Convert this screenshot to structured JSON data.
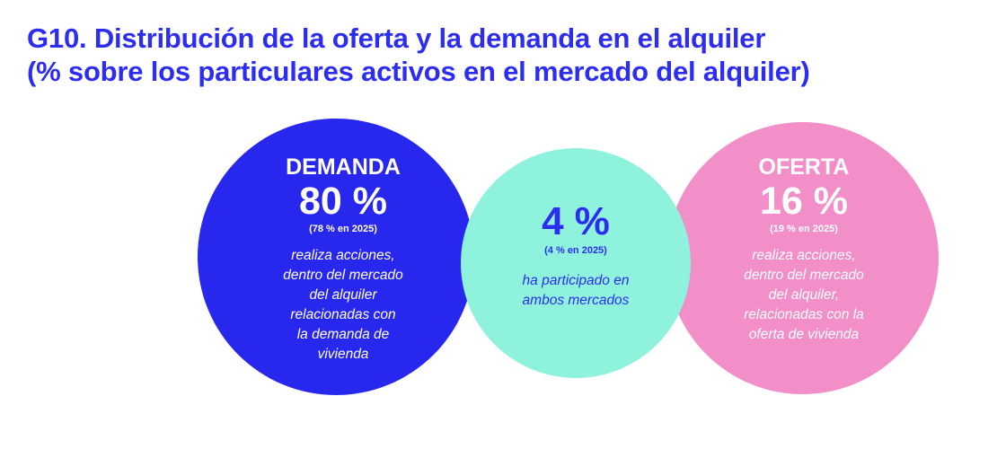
{
  "title": {
    "line1": "G10. Distribución de la oferta y la demanda en el alquiler",
    "line2": "(% sobre los particulares activos en el mercado del alquiler)"
  },
  "colors": {
    "title": "#2d2df2",
    "demand": "#2727ee",
    "both": "#8ef2dc",
    "offer": "#f28ec8"
  },
  "chart_data": {
    "type": "venn",
    "title": "G10. Distribución de la oferta y la demanda en el alquiler (% sobre los particulares activos en el mercado del alquiler)",
    "segments": [
      {
        "label": "DEMANDA",
        "value": 80,
        "value_text": "80 %",
        "previous_text": "(78 % en 2025)",
        "description": [
          "realiza acciones,",
          "dentro del mercado",
          "del alquiler",
          "relacionadas con",
          "la demanda de",
          "vivienda"
        ]
      },
      {
        "label": "",
        "value": 4,
        "value_text": "4 %",
        "previous_text": "(4 % en 2025)",
        "description": [
          "ha participado en",
          "ambos mercados"
        ]
      },
      {
        "label": "OFERTA",
        "value": 16,
        "value_text": "16 %",
        "previous_text": "(19 % en 2025)",
        "description": [
          "realiza acciones,",
          "dentro del mercado",
          "del alquiler,",
          "relacionadas con la",
          "oferta de vivienda"
        ]
      }
    ]
  }
}
